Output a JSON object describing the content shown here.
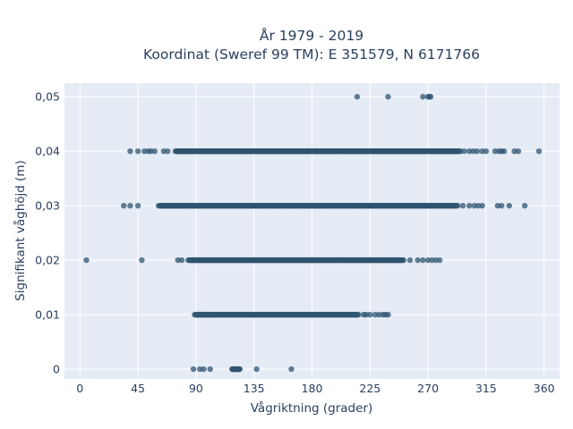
{
  "chart_data": {
    "type": "scatter",
    "title_lines": [
      "År 1979 - 2019",
      "Koordinat (Sweref 99 TM): E 351579, N 6171766"
    ],
    "xlabel": "Vågriktning (grader)",
    "ylabel": "Signifikant våghöjd (m)",
    "xlim": [
      -12,
      372
    ],
    "ylim": [
      -0.0018,
      0.0525
    ],
    "x_ticks": [
      0,
      45,
      90,
      135,
      180,
      225,
      270,
      315,
      360
    ],
    "x_tick_labels": [
      "0",
      "45",
      "90",
      "135",
      "180",
      "225",
      "270",
      "315",
      "360"
    ],
    "y_ticks": [
      0,
      0.01,
      0.02,
      0.03,
      0.04,
      0.05
    ],
    "y_tick_labels": [
      "0",
      "0,01",
      "0,02",
      "0,03",
      "0,04",
      "0,05"
    ],
    "grid": true,
    "colors": {
      "marker": "#2f5470",
      "plot_bg": "#e5ecf6",
      "grid": "#ffffff",
      "text": "#2a3f5f"
    },
    "series": [
      {
        "y": 0,
        "dense_ranges": [
          [
            118,
            124
          ]
        ],
        "x": [
          88,
          93,
          96,
          101,
          119,
          120,
          122,
          123,
          137,
          164
        ]
      },
      {
        "y": 0.01,
        "dense_ranges": [
          [
            90,
            215
          ]
        ],
        "x": [
          89,
          93,
          97,
          100,
          216,
          220,
          222,
          225,
          229,
          232,
          235,
          237,
          239
        ]
      },
      {
        "y": 0.02,
        "dense_ranges": [
          [
            85,
            250
          ]
        ],
        "x": [
          5,
          48,
          76,
          79,
          84,
          251,
          256,
          262,
          266,
          270,
          273,
          276,
          279
        ]
      },
      {
        "y": 0.03,
        "dense_ranges": [
          [
            62,
            292
          ]
        ],
        "x": [
          34,
          39,
          45,
          61,
          64,
          70,
          75,
          80,
          293,
          297,
          302,
          306,
          309,
          312,
          324,
          327,
          333,
          345
        ]
      },
      {
        "y": 0.04,
        "dense_ranges": [
          [
            75,
            294
          ]
        ],
        "x": [
          39,
          45,
          50,
          53,
          55,
          58,
          65,
          68,
          74,
          76,
          295,
          298,
          302,
          305,
          308,
          312,
          315,
          322,
          325,
          327,
          329,
          337,
          340,
          356
        ]
      },
      {
        "y": 0.05,
        "dense_ranges": [],
        "x": [
          215,
          239,
          266,
          270,
          271,
          272
        ]
      }
    ]
  }
}
